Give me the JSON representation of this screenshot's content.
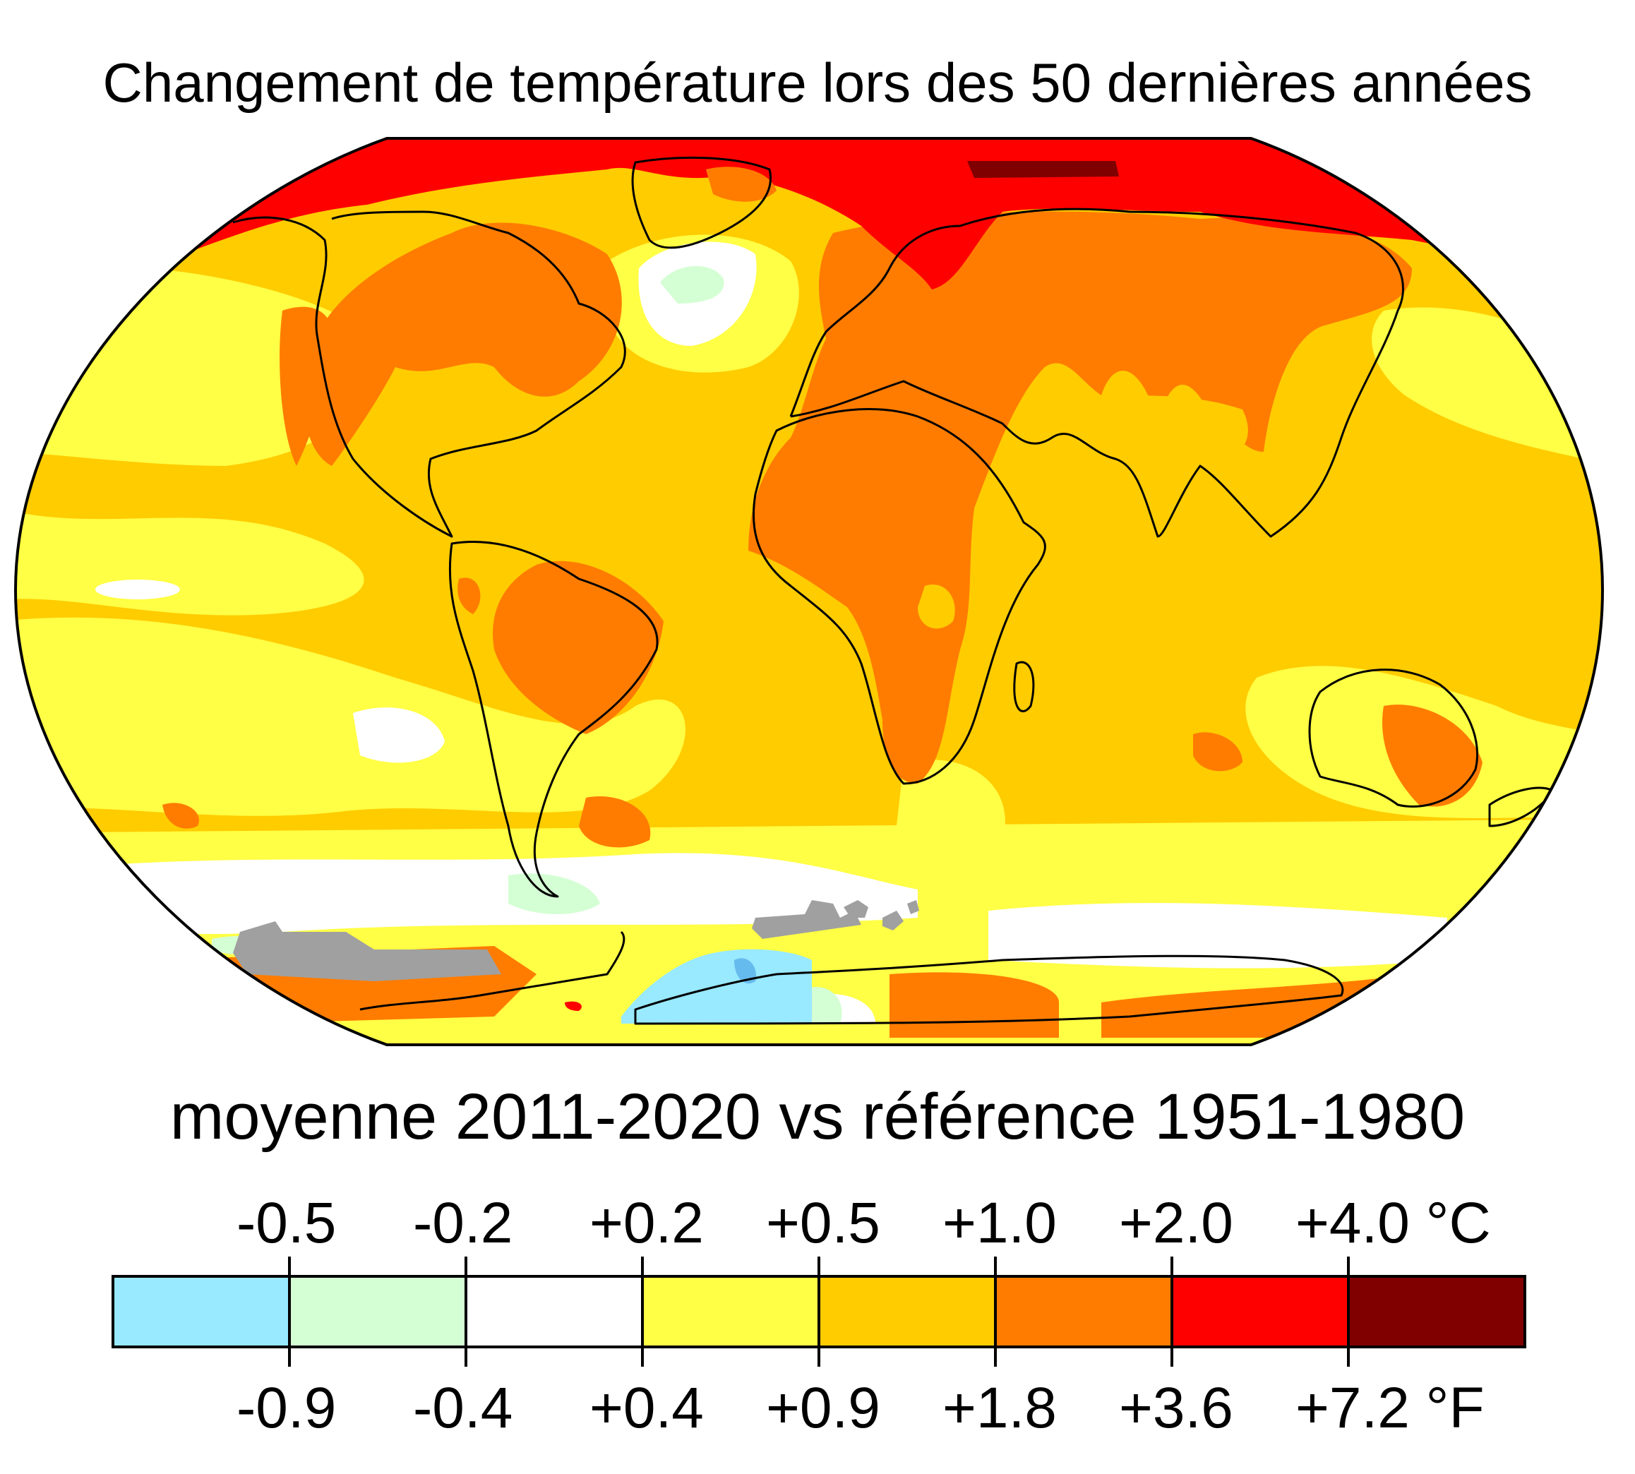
{
  "title": "Changement de température lors des 50 dernières années",
  "subtitle": "moyenne 2011-2020 vs référence 1951-1980",
  "legend": {
    "colors": [
      "#99e9ff",
      "#d4ffd4",
      "#ffffff",
      "#ffff45",
      "#ffcc00",
      "#ff7c00",
      "#ff0000",
      "#800000"
    ],
    "celsius_ticks": [
      "-0.5",
      "-0.2",
      "+0.2",
      "+0.5",
      "+1.0",
      "+2.0",
      "+4.0 °C"
    ],
    "fahrenheit_ticks": [
      "-0.9",
      "-0.4",
      "+0.4",
      "+0.9",
      "+1.8",
      "+3.6",
      "+7.2 °F"
    ]
  },
  "map": {
    "no_data_color": "#a0a0a0",
    "coastline_color": "#000000"
  }
}
